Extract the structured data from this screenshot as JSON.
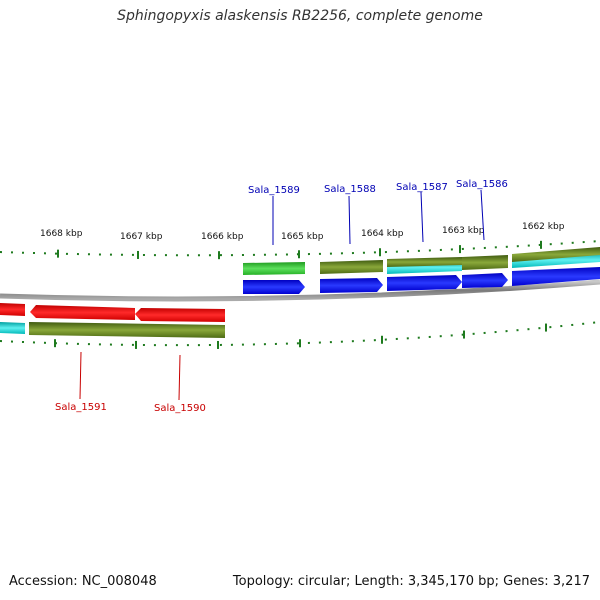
{
  "title": "Sphingopyxis alaskensis RB2256, complete genome",
  "footer": {
    "accession": "Accession: NC_008048",
    "summary": "Topology: circular; Length: 3,345,170 bp; Genes: 3,217"
  },
  "colors": {
    "backbone": "#8a8a8a",
    "ticks": "#1e7a1e",
    "forward_label": "#0000b4",
    "reverse_label": "#c80000",
    "cds_forward": "#0000ee",
    "cds_reverse": "#ee0000",
    "gene_olive": "#6b8e23",
    "gene_green": "#32cd32",
    "gene_cyan": "#00cccc"
  },
  "kbp_labels": [
    "1668 kbp",
    "1667 kbp",
    "1666 kbp",
    "1665 kbp",
    "1664 kbp",
    "1663 kbp",
    "1662 kbp"
  ],
  "forward_genes": [
    "Sala_1589",
    "Sala_1588",
    "Sala_1587",
    "Sala_1586"
  ],
  "reverse_genes": [
    "Sala_1591",
    "Sala_1590"
  ]
}
